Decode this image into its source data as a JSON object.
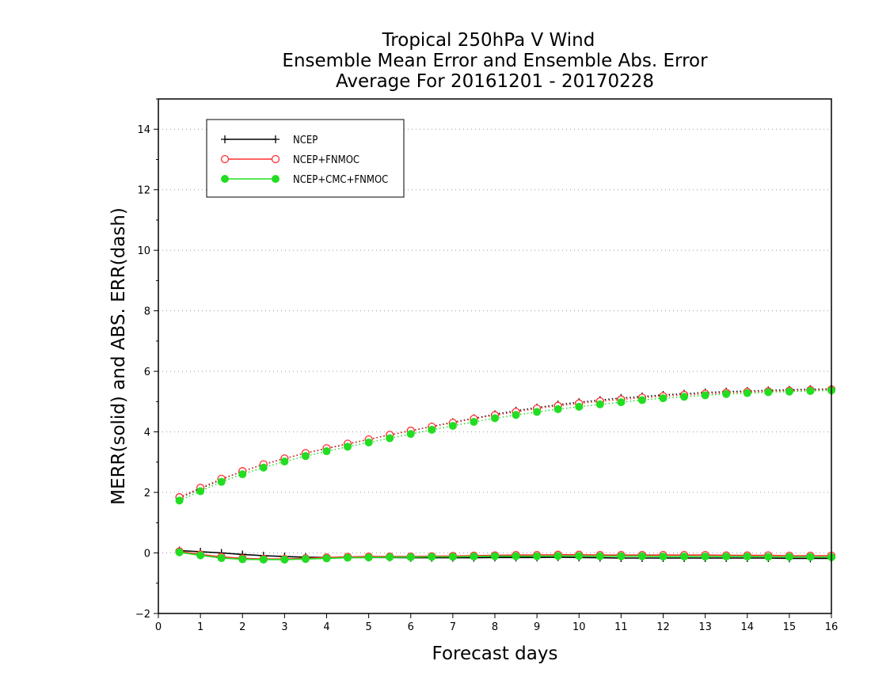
{
  "chart_data": {
    "type": "line",
    "title": [
      "Tropical 250hPa V Wind",
      "Ensemble Mean Error and Ensemble Abs. Error",
      "Average For 20161201 - 20170228"
    ],
    "xlabel": "Forecast days",
    "ylabel": "MERR(solid) and ABS. ERR(dash)",
    "xlim": [
      0,
      16
    ],
    "ylim": [
      -2,
      15
    ],
    "xticks": [
      0,
      1,
      2,
      3,
      4,
      5,
      6,
      7,
      8,
      9,
      10,
      11,
      12,
      13,
      14,
      15,
      16
    ],
    "yticks": [
      -2,
      0,
      2,
      4,
      6,
      8,
      10,
      12,
      14
    ],
    "grid": "horizontal dotted",
    "legend_position": "top-left",
    "x": [
      0.5,
      1,
      1.5,
      2,
      2.5,
      3,
      3.5,
      4,
      4.5,
      5,
      5.5,
      6,
      6.5,
      7,
      7.5,
      8,
      8.5,
      9,
      9.5,
      10,
      10.5,
      11,
      11.5,
      12,
      12.5,
      13,
      13.5,
      14,
      14.5,
      15,
      15.5,
      16
    ],
    "series": [
      {
        "name": "NCEP",
        "color": "#000000",
        "marker": "plus",
        "mean_error": [
          0.08,
          0.04,
          0.0,
          -0.05,
          -0.09,
          -0.12,
          -0.14,
          -0.15,
          -0.15,
          -0.15,
          -0.15,
          -0.16,
          -0.16,
          -0.16,
          -0.16,
          -0.15,
          -0.15,
          -0.15,
          -0.14,
          -0.15,
          -0.16,
          -0.17,
          -0.17,
          -0.17,
          -0.17,
          -0.17,
          -0.17,
          -0.17,
          -0.17,
          -0.18,
          -0.18,
          -0.18
        ],
        "abs_error": [
          1.82,
          2.12,
          2.43,
          2.7,
          2.92,
          3.12,
          3.3,
          3.45,
          3.6,
          3.75,
          3.9,
          4.04,
          4.18,
          4.32,
          4.45,
          4.58,
          4.7,
          4.8,
          4.9,
          4.98,
          5.05,
          5.12,
          5.17,
          5.22,
          5.26,
          5.3,
          5.33,
          5.35,
          5.37,
          5.39,
          5.41,
          5.42
        ]
      },
      {
        "name": "NCEP+FNMOC",
        "color": "#ff3030",
        "marker": "open-circle",
        "mean_error": [
          0.05,
          -0.05,
          -0.13,
          -0.18,
          -0.2,
          -0.2,
          -0.18,
          -0.15,
          -0.13,
          -0.12,
          -0.12,
          -0.12,
          -0.11,
          -0.1,
          -0.09,
          -0.08,
          -0.07,
          -0.07,
          -0.06,
          -0.06,
          -0.07,
          -0.07,
          -0.07,
          -0.07,
          -0.07,
          -0.07,
          -0.08,
          -0.08,
          -0.08,
          -0.09,
          -0.09,
          -0.09
        ],
        "abs_error": [
          1.84,
          2.15,
          2.45,
          2.7,
          2.93,
          3.12,
          3.3,
          3.46,
          3.61,
          3.75,
          3.9,
          4.04,
          4.17,
          4.3,
          4.43,
          4.55,
          4.66,
          4.77,
          4.86,
          4.94,
          5.01,
          5.07,
          5.13,
          5.18,
          5.22,
          5.26,
          5.29,
          5.32,
          5.34,
          5.36,
          5.38,
          5.4
        ]
      },
      {
        "name": "NCEP+CMC+FNMOC",
        "color": "#22dd22",
        "marker": "filled-circle",
        "mean_error": [
          0.02,
          -0.08,
          -0.17,
          -0.21,
          -0.22,
          -0.22,
          -0.2,
          -0.18,
          -0.16,
          -0.15,
          -0.14,
          -0.14,
          -0.13,
          -0.13,
          -0.12,
          -0.11,
          -0.11,
          -0.11,
          -0.1,
          -0.1,
          -0.11,
          -0.11,
          -0.11,
          -0.12,
          -0.12,
          -0.12,
          -0.12,
          -0.12,
          -0.13,
          -0.13,
          -0.13,
          -0.14
        ],
        "abs_error": [
          1.73,
          2.04,
          2.35,
          2.6,
          2.82,
          3.02,
          3.2,
          3.36,
          3.51,
          3.65,
          3.79,
          3.93,
          4.07,
          4.2,
          4.33,
          4.45,
          4.56,
          4.66,
          4.75,
          4.83,
          4.91,
          4.98,
          5.05,
          5.11,
          5.16,
          5.21,
          5.25,
          5.28,
          5.31,
          5.33,
          5.35,
          5.37
        ]
      }
    ]
  }
}
